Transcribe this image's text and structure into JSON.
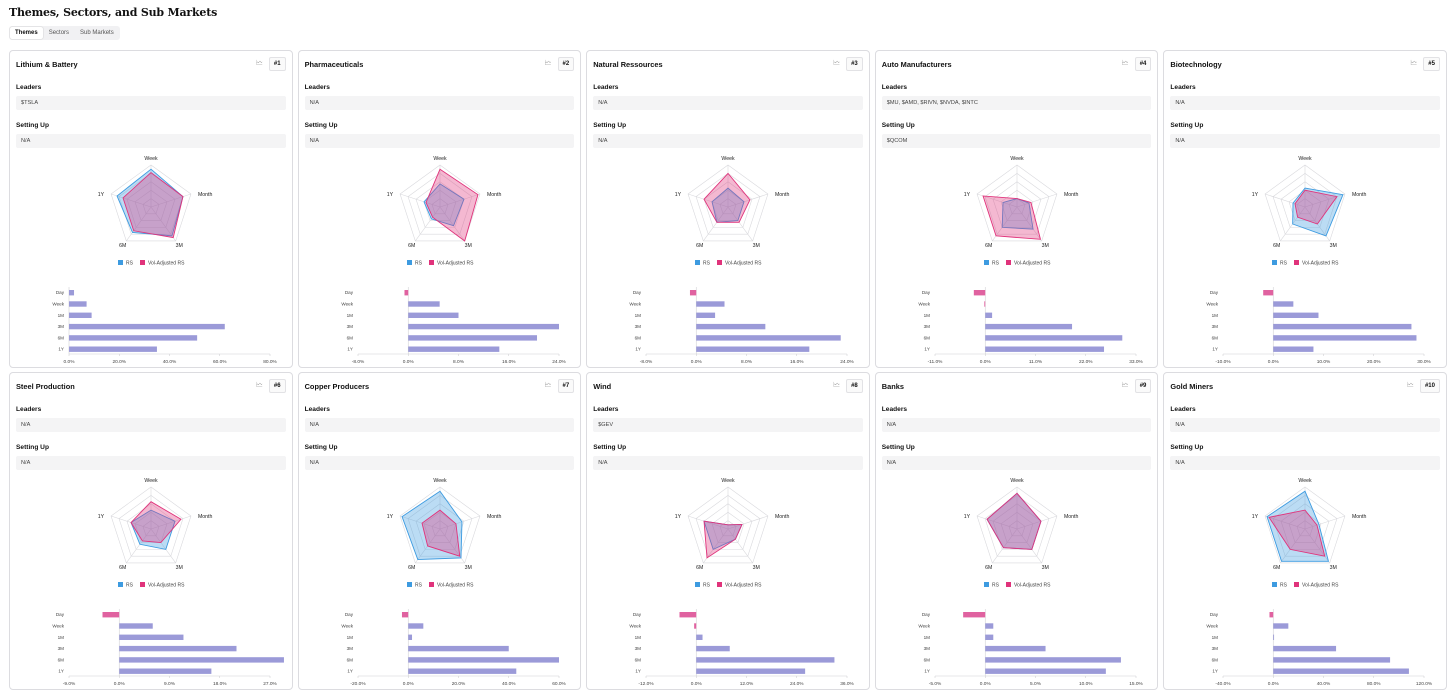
{
  "page": {
    "title": "Themes, Sectors, and Sub Markets"
  },
  "tabs": [
    {
      "label": "Themes",
      "active": true
    },
    {
      "label": "Sectors",
      "active": false
    },
    {
      "label": "Sub Markets",
      "active": false
    }
  ],
  "labels": {
    "leaders": "Leaders",
    "setting_up": "Setting Up"
  },
  "colors": {
    "rs": "#3d9be0",
    "vol": "#e0337b",
    "bar": "#9b9ad8",
    "neg": "#e062a0"
  },
  "cards": [
    {
      "name": "Lithium & Battery",
      "rank": "#1",
      "leaders": "$TSLA",
      "setting_up": "N/A",
      "chart_data": {
        "radar": {
          "axes": [
            "Week",
            "Month",
            "3M",
            "6M",
            "1Y"
          ],
          "legend": [
            "RS",
            "Vol-Adjusted RS"
          ],
          "rs": [
            0.9,
            0.8,
            0.85,
            0.75,
            0.85
          ],
          "vol": [
            0.82,
            0.8,
            0.9,
            0.7,
            0.7
          ]
        },
        "bar": {
          "categories": [
            "Day",
            "Week",
            "1M",
            "3M",
            "6M",
            "1Y"
          ],
          "values": [
            2,
            7,
            9,
            62,
            51,
            35
          ],
          "ticks": [
            "0.0%",
            "20.0%",
            "40.0%",
            "60.0%",
            "80.0%"
          ],
          "tickValues": [
            0,
            20,
            40,
            60,
            80
          ]
        }
      }
    },
    {
      "name": "Pharmaceuticals",
      "rank": "#2",
      "leaders": "N/A",
      "setting_up": "N/A",
      "chart_data": {
        "radar": {
          "axes": [
            "Week",
            "Month",
            "3M",
            "6M",
            "1Y"
          ],
          "legend": [
            "RS",
            "Vol-Adjusted RS"
          ],
          "rs": [
            0.55,
            0.6,
            0.55,
            0.35,
            0.4
          ],
          "vol": [
            0.9,
            0.95,
            1.0,
            0.3,
            0.35
          ]
        },
        "bar": {
          "categories": [
            "Day",
            "Week",
            "1M",
            "3M",
            "6M",
            "1Y"
          ],
          "values": [
            -0.6,
            5,
            8,
            24,
            20.5,
            14.5
          ],
          "ticks": [
            "-8.0%",
            "0.0%",
            "8.0%",
            "16.0%",
            "24.0%"
          ],
          "tickValues": [
            -8,
            0,
            8,
            16,
            24
          ]
        }
      }
    },
    {
      "name": "Natural Ressources",
      "rank": "#3",
      "leaders": "N/A",
      "setting_up": "N/A",
      "chart_data": {
        "radar": {
          "axes": [
            "Week",
            "Month",
            "3M",
            "6M",
            "1Y"
          ],
          "legend": [
            "RS",
            "Vol-Adjusted RS"
          ],
          "rs": [
            0.45,
            0.4,
            0.4,
            0.45,
            0.4
          ],
          "vol": [
            0.8,
            0.55,
            0.45,
            0.45,
            0.6
          ]
        },
        "bar": {
          "categories": [
            "Day",
            "Week",
            "1M",
            "3M",
            "6M",
            "1Y"
          ],
          "values": [
            -1,
            4.5,
            3,
            11,
            23,
            18
          ],
          "ticks": [
            "-8.0%",
            "0.0%",
            "8.0%",
            "16.0%",
            "24.0%"
          ],
          "tickValues": [
            -8,
            0,
            8,
            16,
            24
          ]
        }
      }
    },
    {
      "name": "Auto Manufacturers",
      "rank": "#4",
      "leaders": "$MU, $AMD, $RIVN, $NVDA, $INTC",
      "setting_up": "$QCOM",
      "chart_data": {
        "radar": {
          "axes": [
            "Week",
            "Month",
            "3M",
            "6M",
            "1Y"
          ],
          "legend": [
            "RS",
            "Vol-Adjusted RS"
          ],
          "rs": [
            0.2,
            0.3,
            0.65,
            0.6,
            0.35
          ],
          "vol": [
            0.2,
            0.35,
            0.95,
            0.85,
            0.85
          ]
        },
        "bar": {
          "categories": [
            "Day",
            "Week",
            "1M",
            "3M",
            "6M",
            "1Y"
          ],
          "values": [
            -2.5,
            -0.2,
            1.5,
            19,
            30,
            26
          ],
          "ticks": [
            "-11.0%",
            "0.0%",
            "11.0%",
            "22.0%",
            "33.0%"
          ],
          "tickValues": [
            -11,
            0,
            11,
            22,
            33
          ]
        }
      }
    },
    {
      "name": "Biotechnology",
      "rank": "#5",
      "leaders": "N/A",
      "setting_up": "N/A",
      "chart_data": {
        "radar": {
          "axes": [
            "Week",
            "Month",
            "3M",
            "6M",
            "1Y"
          ],
          "legend": [
            "RS",
            "Vol-Adjusted RS"
          ],
          "rs": [
            0.45,
            0.95,
            0.85,
            0.5,
            0.3
          ],
          "vol": [
            0.4,
            0.8,
            0.5,
            0.3,
            0.25
          ]
        },
        "bar": {
          "categories": [
            "Day",
            "Week",
            "1M",
            "3M",
            "6M",
            "1Y"
          ],
          "values": [
            -2,
            4,
            9,
            27.5,
            28.5,
            8
          ],
          "ticks": [
            "-10.0%",
            "0.0%",
            "10.0%",
            "20.0%",
            "30.0%"
          ],
          "tickValues": [
            -10,
            0,
            10,
            20,
            30
          ]
        }
      }
    },
    {
      "name": "Steel Production",
      "rank": "#6",
      "leaders": "N/A",
      "setting_up": "N/A",
      "chart_data": {
        "radar": {
          "axes": [
            "Week",
            "Month",
            "3M",
            "6M",
            "1Y"
          ],
          "legend": [
            "RS",
            "Vol-Adjusted RS"
          ],
          "rs": [
            0.45,
            0.6,
            0.6,
            0.45,
            0.5
          ],
          "vol": [
            0.65,
            0.75,
            0.4,
            0.35,
            0.5
          ]
        },
        "bar": {
          "categories": [
            "Day",
            "Week",
            "1M",
            "3M",
            "6M",
            "1Y"
          ],
          "values": [
            -3,
            6,
            11.5,
            21,
            29.5,
            16.5
          ],
          "ticks": [
            "-9.0%",
            "0.0%",
            "9.0%",
            "18.0%",
            "27.0%"
          ],
          "tickValues": [
            -9,
            0,
            9,
            18,
            27
          ]
        }
      }
    },
    {
      "name": "Copper Producers",
      "rank": "#7",
      "leaders": "N/A",
      "setting_up": "N/A",
      "chart_data": {
        "radar": {
          "axes": [
            "Week",
            "Month",
            "3M",
            "6M",
            "1Y"
          ],
          "legend": [
            "RS",
            "Vol-Adjusted RS"
          ],
          "rs": [
            0.9,
            0.55,
            0.85,
            0.9,
            0.95
          ],
          "vol": [
            0.45,
            0.4,
            0.8,
            0.5,
            0.45
          ]
        },
        "bar": {
          "categories": [
            "Day",
            "Week",
            "1M",
            "3M",
            "6M",
            "1Y"
          ],
          "values": [
            -2.5,
            6,
            1.5,
            40,
            60,
            43
          ],
          "ticks": [
            "-20.0%",
            "0.0%",
            "20.0%",
            "40.0%",
            "60.0%"
          ],
          "tickValues": [
            -20,
            0,
            20,
            40,
            60
          ]
        }
      }
    },
    {
      "name": "Wind",
      "rank": "#8",
      "leaders": "$GEV",
      "setting_up": "N/A",
      "chart_data": {
        "radar": {
          "axes": [
            "Week",
            "Month",
            "3M",
            "6M",
            "1Y"
          ],
          "legend": [
            "RS",
            "Vol-Adjusted RS"
          ],
          "rs": [
            0.1,
            0.35,
            0.3,
            0.6,
            0.6
          ],
          "vol": [
            0.1,
            0.35,
            0.3,
            0.85,
            0.6
          ]
        },
        "bar": {
          "categories": [
            "Day",
            "Week",
            "1M",
            "3M",
            "6M",
            "1Y"
          ],
          "values": [
            -4,
            -0.5,
            1.5,
            8,
            33,
            26
          ],
          "ticks": [
            "-12.0%",
            "0.0%",
            "12.0%",
            "24.0%",
            "36.0%"
          ],
          "tickValues": [
            -12,
            0,
            12,
            24,
            36
          ]
        }
      }
    },
    {
      "name": "Banks",
      "rank": "#9",
      "leaders": "N/A",
      "setting_up": "N/A",
      "chart_data": {
        "radar": {
          "axes": [
            "Week",
            "Month",
            "3M",
            "6M",
            "1Y"
          ],
          "legend": [
            "RS",
            "Vol-Adjusted RS"
          ],
          "rs": [
            0.85,
            0.6,
            0.6,
            0.55,
            0.75
          ],
          "vol": [
            0.85,
            0.6,
            0.6,
            0.55,
            0.75
          ]
        },
        "bar": {
          "categories": [
            "Day",
            "Week",
            "1M",
            "3M",
            "6M",
            "1Y"
          ],
          "values": [
            -2.2,
            0.8,
            0.8,
            6,
            13.5,
            12
          ],
          "ticks": [
            "-5.0%",
            "0.0%",
            "5.0%",
            "10.0%",
            "15.0%"
          ],
          "tickValues": [
            -5,
            0,
            5,
            10,
            15
          ]
        }
      }
    },
    {
      "name": "Gold Miners",
      "rank": "#10",
      "leaders": "N/A",
      "setting_up": "N/A",
      "chart_data": {
        "radar": {
          "axes": [
            "Week",
            "Month",
            "3M",
            "6M",
            "1Y"
          ],
          "legend": [
            "RS",
            "Vol-Adjusted RS"
          ],
          "rs": [
            0.9,
            0.35,
            0.95,
            0.95,
            0.95
          ],
          "vol": [
            0.45,
            0.3,
            0.8,
            0.6,
            0.9
          ]
        },
        "bar": {
          "categories": [
            "Day",
            "Week",
            "1M",
            "3M",
            "6M",
            "1Y"
          ],
          "values": [
            -3,
            12,
            0,
            50,
            93,
            108
          ],
          "ticks": [
            "-40.0%",
            "0.0%",
            "40.0%",
            "80.0%",
            "120.0%"
          ],
          "tickValues": [
            -40,
            0,
            40,
            80,
            120
          ]
        }
      }
    }
  ]
}
